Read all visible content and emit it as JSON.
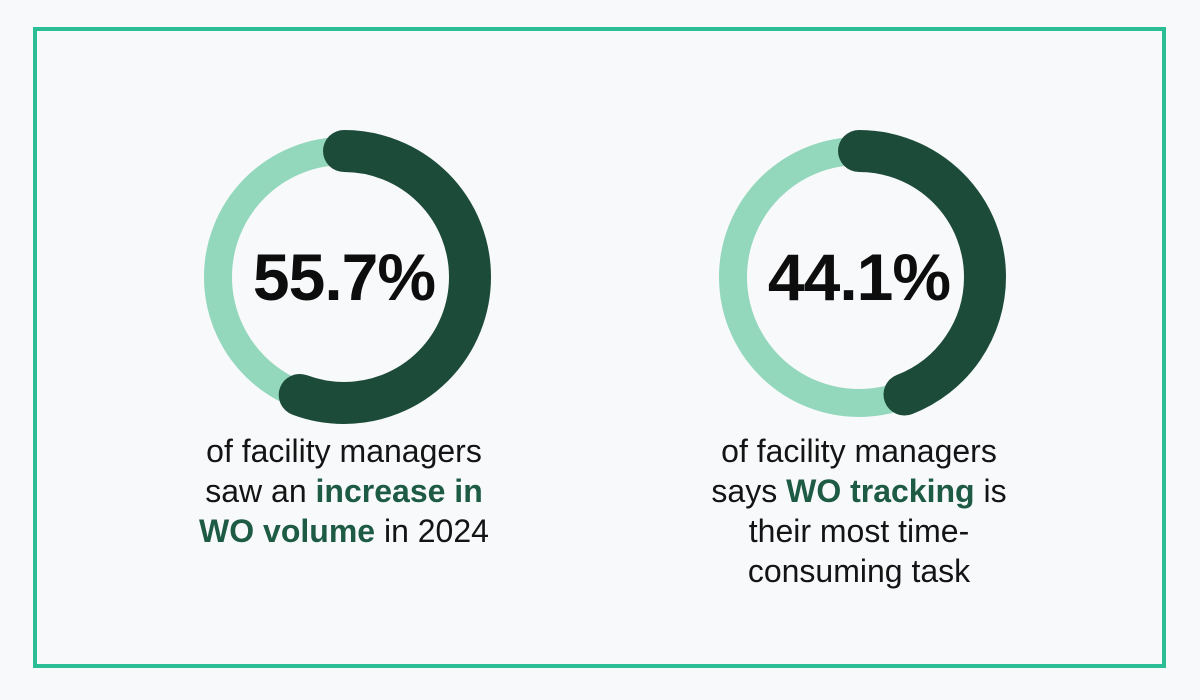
{
  "theme": {
    "background": "#f8f9fa",
    "frame_color": "#2abd96",
    "track_color": "#93d8bc",
    "arc_color": "#1c4b39",
    "accent_text_color": "#1e5b45",
    "text_color": "#141414",
    "percent_color": "#0d0d0d"
  },
  "chart_data": [
    {
      "type": "donut",
      "value_pct": 55.7,
      "value_label": "55.7%",
      "arc_start": "top",
      "direction": "clockwise",
      "caption_lines": [
        [
          {
            "text": "of facility managers",
            "accent": false
          }
        ],
        [
          {
            "text": "saw an ",
            "accent": false
          },
          {
            "text": "increase in",
            "accent": true
          }
        ],
        [
          {
            "text": "WO volume",
            "accent": true
          },
          {
            "text": " in 2024",
            "accent": false
          }
        ]
      ]
    },
    {
      "type": "donut",
      "value_pct": 44.1,
      "value_label": "44.1%",
      "arc_start": "top",
      "direction": "clockwise",
      "caption_lines": [
        [
          {
            "text": "of facility managers",
            "accent": false
          }
        ],
        [
          {
            "text": "says ",
            "accent": false
          },
          {
            "text": "WO tracking",
            "accent": true
          },
          {
            "text": " is",
            "accent": false
          }
        ],
        [
          {
            "text": "their most time-",
            "accent": false
          }
        ],
        [
          {
            "text": "consuming task",
            "accent": false
          }
        ]
      ]
    }
  ]
}
